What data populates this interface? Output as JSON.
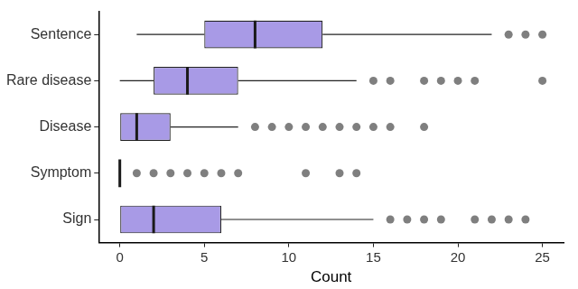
{
  "chart_data": {
    "type": "boxplot",
    "orientation": "horizontal",
    "x_label": "Count",
    "categories": [
      "Sentence",
      "Rare disease",
      "Disease",
      "Symptom",
      "Sign"
    ],
    "boxes": [
      {
        "min": 1,
        "q1": 5,
        "median": 8,
        "q3": 12,
        "max": 22,
        "outliers": [
          23,
          24,
          25
        ]
      },
      {
        "min": 0,
        "q1": 2,
        "median": 4,
        "q3": 7,
        "max": 14,
        "outliers": [
          15,
          16,
          18,
          19,
          20,
          21,
          25
        ]
      },
      {
        "min": 0,
        "q1": 0,
        "median": 1,
        "q3": 3,
        "max": 7,
        "outliers": [
          8,
          9,
          10,
          11,
          12,
          13,
          14,
          15,
          16,
          18
        ]
      },
      {
        "min": 0,
        "q1": 0,
        "median": 0,
        "q3": 0,
        "max": 0,
        "outliers": [
          1,
          2,
          3,
          4,
          5,
          6,
          7,
          11,
          13,
          14
        ]
      },
      {
        "min": 0,
        "q1": 0,
        "median": 2,
        "q3": 6,
        "max": 15,
        "outliers": [
          16,
          17,
          18,
          19,
          21,
          22,
          23,
          24
        ]
      }
    ],
    "color": "#a89ae6",
    "xlim": [
      -1.25,
      26.25
    ],
    "xticks": [
      0,
      5,
      10,
      15,
      20,
      25
    ],
    "grid": false
  }
}
